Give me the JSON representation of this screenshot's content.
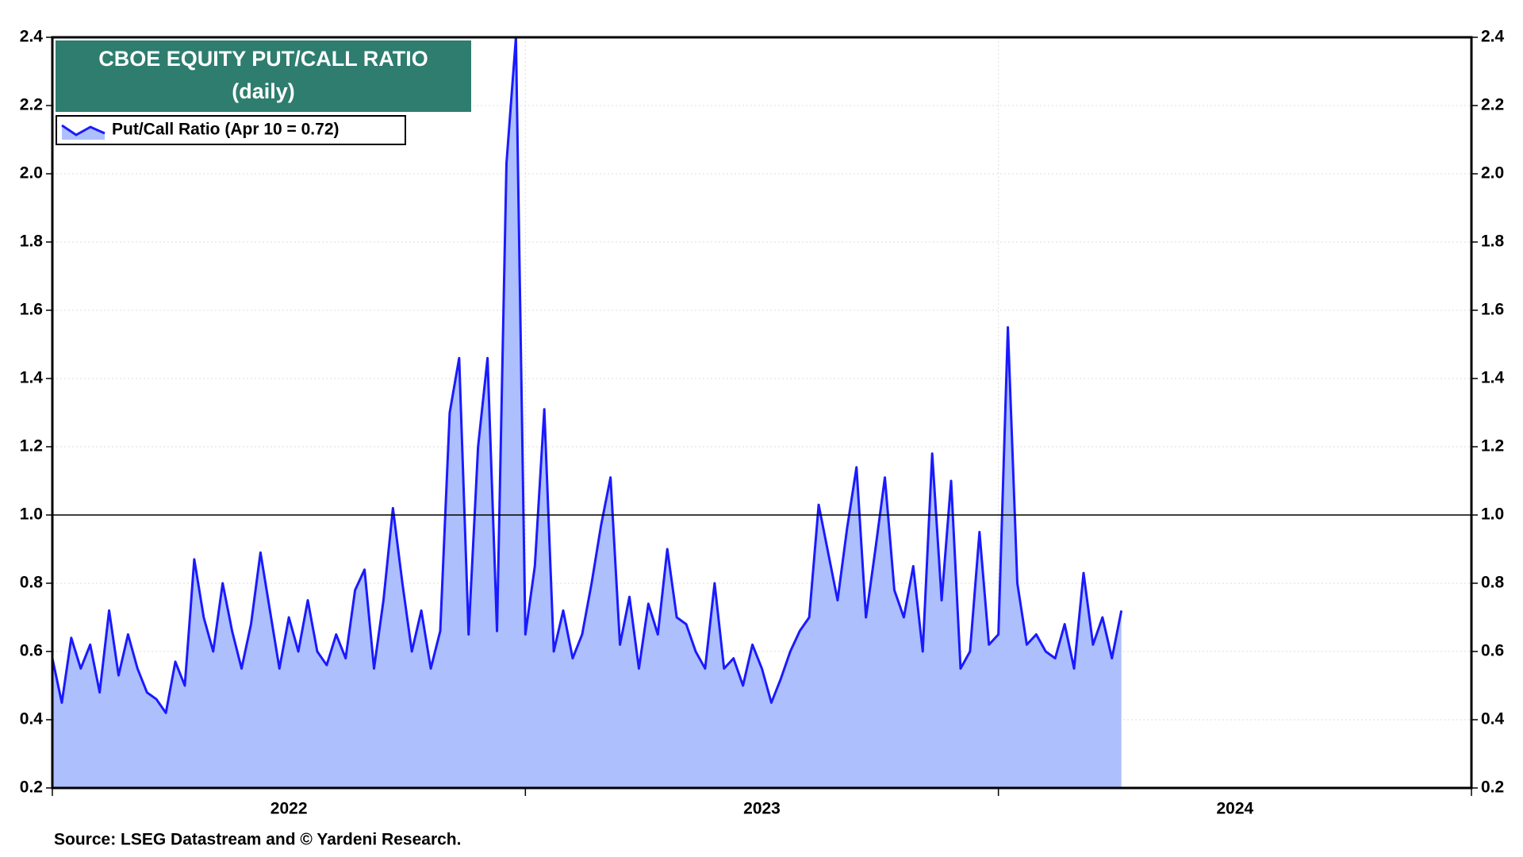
{
  "chart_data": {
    "type": "line",
    "title": "CBOE EQUITY PUT/CALL RATIO",
    "subtitle": "(daily)",
    "source": "Source: LSEG Datastream and © Yardeni Research.",
    "x": [
      2022.0,
      2022.02,
      2022.04,
      2022.06,
      2022.08,
      2022.1,
      2022.12,
      2022.14,
      2022.16,
      2022.18,
      2022.2,
      2022.22,
      2022.24,
      2022.26,
      2022.28,
      2022.3,
      2022.32,
      2022.34,
      2022.36,
      2022.38,
      2022.4,
      2022.42,
      2022.44,
      2022.46,
      2022.48,
      2022.5,
      2022.52,
      2022.54,
      2022.56,
      2022.58,
      2022.6,
      2022.62,
      2022.64,
      2022.66,
      2022.68,
      2022.7,
      2022.72,
      2022.74,
      2022.76,
      2022.78,
      2022.8,
      2022.82,
      2022.84,
      2022.86,
      2022.88,
      2022.9,
      2022.92,
      2022.94,
      2022.96,
      2022.98,
      2023.0,
      2023.02,
      2023.04,
      2023.06,
      2023.08,
      2023.1,
      2023.12,
      2023.14,
      2023.16,
      2023.18,
      2023.2,
      2023.22,
      2023.24,
      2023.26,
      2023.28,
      2023.3,
      2023.32,
      2023.34,
      2023.36,
      2023.38,
      2023.4,
      2023.42,
      2023.44,
      2023.46,
      2023.48,
      2023.5,
      2023.52,
      2023.54,
      2023.56,
      2023.58,
      2023.6,
      2023.62,
      2023.64,
      2023.66,
      2023.68,
      2023.7,
      2023.72,
      2023.74,
      2023.76,
      2023.78,
      2023.8,
      2023.82,
      2023.84,
      2023.86,
      2023.88,
      2023.9,
      2023.92,
      2023.94,
      2023.96,
      2023.98,
      2024.0,
      2024.02,
      2024.04,
      2024.06,
      2024.08,
      2024.1,
      2024.12,
      2024.14,
      2024.16,
      2024.18,
      2024.2,
      2024.22,
      2024.24,
      2024.26
    ],
    "series": [
      {
        "name": "Put/Call Ratio (Apr 10 = 0.72)",
        "color": "#1a1aff",
        "fill": "#adbffc",
        "values": [
          0.58,
          0.45,
          0.64,
          0.55,
          0.62,
          0.48,
          0.72,
          0.53,
          0.65,
          0.55,
          0.48,
          0.46,
          0.42,
          0.57,
          0.5,
          0.87,
          0.7,
          0.6,
          0.8,
          0.66,
          0.55,
          0.68,
          0.89,
          0.72,
          0.55,
          0.7,
          0.6,
          0.75,
          0.6,
          0.56,
          0.65,
          0.58,
          0.78,
          0.84,
          0.55,
          0.75,
          1.02,
          0.8,
          0.6,
          0.72,
          0.55,
          0.66,
          1.3,
          1.46,
          0.65,
          1.2,
          1.46,
          0.66,
          2.03,
          2.4,
          0.65,
          0.85,
          1.31,
          0.6,
          0.72,
          0.58,
          0.65,
          0.8,
          0.97,
          1.11,
          0.62,
          0.76,
          0.55,
          0.74,
          0.65,
          0.9,
          0.7,
          0.68,
          0.6,
          0.55,
          0.8,
          0.55,
          0.58,
          0.5,
          0.62,
          0.55,
          0.45,
          0.52,
          0.6,
          0.66,
          0.7,
          1.03,
          0.89,
          0.75,
          0.96,
          1.14,
          0.7,
          0.9,
          1.11,
          0.78,
          0.7,
          0.85,
          0.6,
          1.18,
          0.75,
          1.1,
          0.55,
          0.6,
          0.95,
          0.62,
          0.65,
          1.55,
          0.8,
          0.62,
          0.65,
          0.6,
          0.58,
          0.68,
          0.55,
          0.83,
          0.62,
          0.7,
          0.58,
          0.72
        ]
      }
    ],
    "xlim": [
      2022,
      2025
    ],
    "xticks": [
      2022,
      2023,
      2024,
      2025
    ],
    "xlabels": [
      {
        "value": 2022.5,
        "label": "2022"
      },
      {
        "value": 2023.5,
        "label": "2023"
      },
      {
        "value": 2024.5,
        "label": "2024"
      }
    ],
    "ylim": [
      0.2,
      2.4
    ],
    "yticks": [
      0.2,
      0.4,
      0.6,
      0.8,
      {
        "value": 1,
        "label": "1.0"
      },
      1.2,
      1.4,
      1.6,
      1.8,
      {
        "value": 2,
        "label": "2.0"
      },
      2.2,
      2.4
    ],
    "hline": 1,
    "grid": true,
    "legend": "upper left"
  }
}
